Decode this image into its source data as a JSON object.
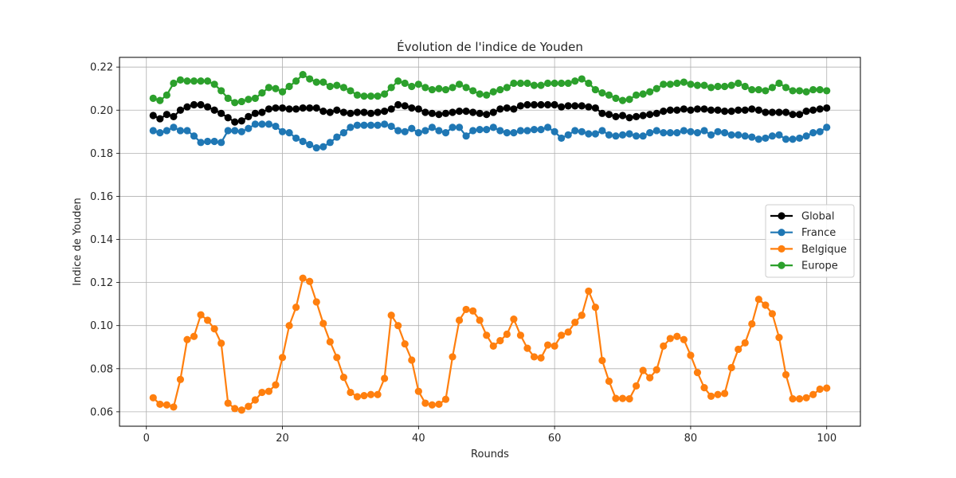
{
  "chart_data": {
    "type": "line",
    "title": "Évolution de l'indice de Youden",
    "xlabel": "Rounds",
    "ylabel": "Indice de Youden",
    "xlim": [
      -3.95,
      104.95
    ],
    "ylim": [
      0.0533,
      0.2245
    ],
    "xticks": [
      0,
      20,
      40,
      60,
      80,
      100
    ],
    "yticks": [
      0.06,
      0.08,
      0.1,
      0.12,
      0.14,
      0.16,
      0.18,
      0.2,
      0.22
    ],
    "xtick_labels": [
      "0",
      "20",
      "40",
      "60",
      "80",
      "100"
    ],
    "ytick_labels": [
      "0.06",
      "0.08",
      "0.10",
      "0.12",
      "0.14",
      "0.16",
      "0.18",
      "0.20",
      "0.22"
    ],
    "grid": true,
    "legend_position": "center-right",
    "x": [
      1,
      2,
      3,
      4,
      5,
      6,
      7,
      8,
      9,
      10,
      11,
      12,
      13,
      14,
      15,
      16,
      17,
      18,
      19,
      20,
      21,
      22,
      23,
      24,
      25,
      26,
      27,
      28,
      29,
      30,
      31,
      32,
      33,
      34,
      35,
      36,
      37,
      38,
      39,
      40,
      41,
      42,
      43,
      44,
      45,
      46,
      47,
      48,
      49,
      50,
      51,
      52,
      53,
      54,
      55,
      56,
      57,
      58,
      59,
      60,
      61,
      62,
      63,
      64,
      65,
      66,
      67,
      68,
      69,
      70,
      71,
      72,
      73,
      74,
      75,
      76,
      77,
      78,
      79,
      80,
      81,
      82,
      83,
      84,
      85,
      86,
      87,
      88,
      89,
      90,
      91,
      92,
      93,
      94,
      95,
      96,
      97,
      98,
      99,
      100
    ],
    "series": [
      {
        "name": "Global",
        "color": "#000000",
        "values": [
          0.1975,
          0.196,
          0.198,
          0.197,
          0.2,
          0.2015,
          0.2025,
          0.2025,
          0.2015,
          0.2,
          0.1985,
          0.1965,
          0.1945,
          0.195,
          0.197,
          0.1985,
          0.199,
          0.2005,
          0.201,
          0.201,
          0.2005,
          0.2005,
          0.201,
          0.201,
          0.201,
          0.1995,
          0.199,
          0.2,
          0.199,
          0.1985,
          0.199,
          0.199,
          0.1985,
          0.199,
          0.1995,
          0.2005,
          0.2025,
          0.202,
          0.201,
          0.2005,
          0.199,
          0.1985,
          0.198,
          0.1985,
          0.199,
          0.1995,
          0.1995,
          0.199,
          0.1985,
          0.198,
          0.199,
          0.2005,
          0.201,
          0.2005,
          0.202,
          0.2025,
          0.2025,
          0.2025,
          0.2025,
          0.2025,
          0.2015,
          0.202,
          0.202,
          0.202,
          0.2015,
          0.201,
          0.1985,
          0.198,
          0.197,
          0.1975,
          0.1965,
          0.197,
          0.1975,
          0.198,
          0.1985,
          0.1995,
          0.2,
          0.2,
          0.2005,
          0.2,
          0.2005,
          0.2005,
          0.2,
          0.2,
          0.1995,
          0.1995,
          0.2,
          0.2,
          0.2005,
          0.2,
          0.199,
          0.199,
          0.199,
          0.199,
          0.198,
          0.198,
          0.1995,
          0.2,
          0.2005,
          0.201
        ]
      },
      {
        "name": "France",
        "color": "#1f77b4",
        "values": [
          0.1905,
          0.1895,
          0.1905,
          0.192,
          0.1905,
          0.1905,
          0.188,
          0.185,
          0.1855,
          0.1855,
          0.185,
          0.1905,
          0.1905,
          0.19,
          0.1915,
          0.1935,
          0.1935,
          0.1935,
          0.1925,
          0.19,
          0.1895,
          0.187,
          0.1855,
          0.184,
          0.1825,
          0.183,
          0.185,
          0.1875,
          0.1895,
          0.192,
          0.193,
          0.193,
          0.193,
          0.193,
          0.1935,
          0.1925,
          0.1905,
          0.19,
          0.1915,
          0.1895,
          0.1905,
          0.192,
          0.1905,
          0.1895,
          0.192,
          0.192,
          0.188,
          0.1905,
          0.191,
          0.191,
          0.192,
          0.1905,
          0.1895,
          0.1895,
          0.1905,
          0.1905,
          0.191,
          0.191,
          0.192,
          0.19,
          0.187,
          0.1885,
          0.1905,
          0.19,
          0.189,
          0.189,
          0.1905,
          0.1885,
          0.188,
          0.1885,
          0.189,
          0.188,
          0.188,
          0.1895,
          0.1905,
          0.1895,
          0.1895,
          0.1895,
          0.1905,
          0.19,
          0.1895,
          0.1905,
          0.1885,
          0.19,
          0.1895,
          0.1885,
          0.1885,
          0.188,
          0.1875,
          0.1865,
          0.187,
          0.188,
          0.1885,
          0.1865,
          0.1865,
          0.187,
          0.188,
          0.1895,
          0.19,
          0.192
        ]
      },
      {
        "name": "Belgique",
        "color": "#ff7f0e",
        "values": [
          0.0665,
          0.0635,
          0.0632,
          0.0622,
          0.075,
          0.0935,
          0.095,
          0.105,
          0.1025,
          0.0985,
          0.0918,
          0.064,
          0.0615,
          0.0608,
          0.0625,
          0.0655,
          0.069,
          0.0695,
          0.0725,
          0.0852,
          0.1,
          0.1085,
          0.122,
          0.1205,
          0.111,
          0.101,
          0.0925,
          0.0852,
          0.076,
          0.069,
          0.067,
          0.0675,
          0.068,
          0.068,
          0.0755,
          0.1048,
          0.1,
          0.0915,
          0.084,
          0.0695,
          0.064,
          0.0632,
          0.0635,
          0.0658,
          0.0855,
          0.1025,
          0.1075,
          0.1068,
          0.1025,
          0.0955,
          0.0905,
          0.093,
          0.096,
          0.103,
          0.0955,
          0.0895,
          0.0855,
          0.085,
          0.091,
          0.0905,
          0.0955,
          0.097,
          0.1015,
          0.1048,
          0.116,
          0.1085,
          0.0838,
          0.0742,
          0.0662,
          0.0662,
          0.066,
          0.072,
          0.0792,
          0.0758,
          0.0795,
          0.0905,
          0.094,
          0.095,
          0.0935,
          0.0862,
          0.0782,
          0.0712,
          0.0672,
          0.068,
          0.0685,
          0.0805,
          0.089,
          0.092,
          0.1008,
          0.1122,
          0.1095,
          0.1055,
          0.0945,
          0.0772,
          0.066,
          0.066,
          0.0665,
          0.068,
          0.0705,
          0.071
        ]
      },
      {
        "name": "Europe",
        "color": "#2ca02c",
        "values": [
          0.2055,
          0.2045,
          0.207,
          0.2125,
          0.214,
          0.2135,
          0.2135,
          0.2135,
          0.2135,
          0.212,
          0.209,
          0.2055,
          0.2035,
          0.204,
          0.205,
          0.2055,
          0.208,
          0.2105,
          0.21,
          0.2085,
          0.211,
          0.2135,
          0.2165,
          0.2145,
          0.213,
          0.213,
          0.211,
          0.2115,
          0.2105,
          0.209,
          0.207,
          0.2065,
          0.2065,
          0.2065,
          0.2075,
          0.2105,
          0.2135,
          0.2125,
          0.211,
          0.212,
          0.2105,
          0.2095,
          0.21,
          0.2095,
          0.2105,
          0.212,
          0.2105,
          0.209,
          0.2075,
          0.207,
          0.2085,
          0.2095,
          0.2105,
          0.2125,
          0.2125,
          0.2125,
          0.2115,
          0.2115,
          0.2125,
          0.2125,
          0.2125,
          0.2125,
          0.2135,
          0.2145,
          0.2125,
          0.2095,
          0.208,
          0.207,
          0.2055,
          0.2045,
          0.205,
          0.207,
          0.2075,
          0.2085,
          0.21,
          0.212,
          0.212,
          0.2125,
          0.213,
          0.212,
          0.2115,
          0.2115,
          0.2105,
          0.211,
          0.211,
          0.2115,
          0.2125,
          0.211,
          0.2095,
          0.2095,
          0.209,
          0.2105,
          0.2125,
          0.2105,
          0.209,
          0.209,
          0.2085,
          0.2095,
          0.2095,
          0.209
        ]
      }
    ]
  }
}
